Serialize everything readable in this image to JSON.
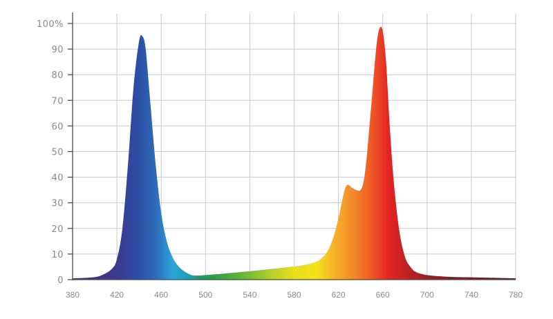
{
  "chart_data": {
    "type": "area",
    "title": "",
    "xlabel": "",
    "ylabel": "",
    "xlim": [
      380,
      780
    ],
    "ylim": [
      0,
      100
    ],
    "grid": true,
    "x_ticks": [
      380,
      420,
      460,
      500,
      540,
      580,
      620,
      660,
      700,
      740,
      780
    ],
    "x_tick_labels": [
      "380",
      "420",
      "460",
      "500",
      "540",
      "580",
      "620",
      "660",
      "700",
      "740",
      "780"
    ],
    "y_ticks": [
      0,
      10,
      20,
      30,
      40,
      50,
      60,
      70,
      80,
      90,
      100
    ],
    "y_tick_labels": [
      "0",
      "10",
      "20",
      "30",
      "40",
      "50",
      "60",
      "70",
      "80",
      "90",
      "100%"
    ],
    "series": [
      {
        "fill": "visible-spectrum gradient",
        "x": [
          380,
          395,
          405,
          415,
          420,
          425,
          430,
          435,
          440,
          443,
          446,
          450,
          455,
          460,
          465,
          470,
          475,
          480,
          485,
          490,
          500,
          520,
          540,
          560,
          580,
          590,
          600,
          605,
          610,
          615,
          620,
          625,
          628,
          632,
          636,
          640,
          643,
          646,
          650,
          654,
          657,
          660,
          663,
          666,
          670,
          675,
          680,
          685,
          690,
          700,
          720,
          740,
          760,
          780
        ],
        "y": [
          0.5,
          0.8,
          1.5,
          4,
          8,
          20,
          45,
          75,
          93,
          95,
          90,
          70,
          45,
          26,
          15,
          9,
          5.5,
          3.5,
          2.2,
          1.6,
          1.8,
          2.5,
          3.3,
          4.2,
          5.2,
          5.8,
          7,
          8.5,
          11,
          16,
          24,
          34,
          37,
          36,
          35,
          35,
          39,
          50,
          70,
          90,
          98,
          97,
          85,
          62,
          38,
          19,
          9,
          5,
          3,
          1.8,
          1.1,
          0.9,
          0.7,
          0.5
        ]
      }
    ],
    "spectrum_gradient": [
      {
        "nm": 380,
        "color": "#4a2d6e"
      },
      {
        "nm": 420,
        "color": "#3b3a8f"
      },
      {
        "nm": 440,
        "color": "#2b4fa6"
      },
      {
        "nm": 455,
        "color": "#2e6bb8"
      },
      {
        "nm": 470,
        "color": "#2aa3dc"
      },
      {
        "nm": 485,
        "color": "#1b9fb8"
      },
      {
        "nm": 500,
        "color": "#1a9a4a"
      },
      {
        "nm": 530,
        "color": "#5db33a"
      },
      {
        "nm": 560,
        "color": "#b7cf2a"
      },
      {
        "nm": 580,
        "color": "#e9df1c"
      },
      {
        "nm": 600,
        "color": "#f5e11a"
      },
      {
        "nm": 615,
        "color": "#f7b52a"
      },
      {
        "nm": 635,
        "color": "#f3842a"
      },
      {
        "nm": 650,
        "color": "#ee5a26"
      },
      {
        "nm": 665,
        "color": "#e42422"
      },
      {
        "nm": 700,
        "color": "#9b1f25"
      },
      {
        "nm": 780,
        "color": "#5a1a1d"
      }
    ]
  }
}
